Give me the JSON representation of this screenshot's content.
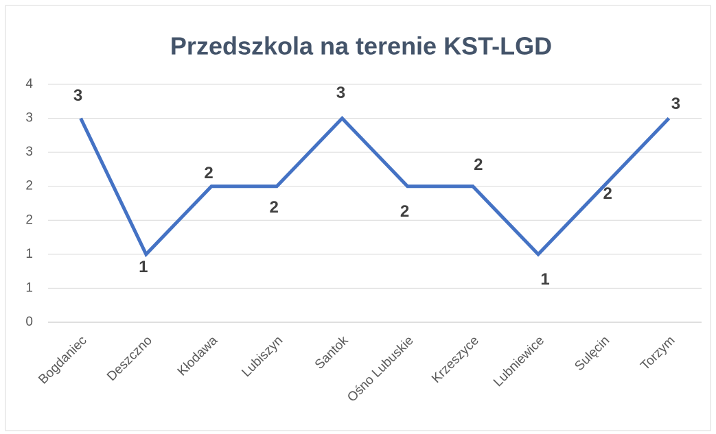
{
  "chart_data": {
    "type": "line",
    "title": "Przedszkola na terenie KST-LGD",
    "categories": [
      "Bogdaniec",
      "Deszczno",
      "Kłodawa",
      "Lubiszyn",
      "Santok",
      "Ośno Lubuskie",
      "Krzeszyce",
      "Lubniewice",
      "Sulęcin",
      "Torzym"
    ],
    "values": [
      3,
      1,
      2,
      2,
      3,
      2,
      2,
      1,
      2,
      3
    ],
    "color": "#4472c4",
    "ylim": [
      0,
      3.5
    ],
    "yticks": [
      0,
      {
        "value": 0.5,
        "label": "1"
      },
      1,
      {
        "value": 1.5,
        "label": "2"
      },
      2,
      {
        "value": 2.5,
        "label": "3"
      },
      3,
      {
        "value": 3.5,
        "label": "4"
      }
    ],
    "grid": true
  }
}
